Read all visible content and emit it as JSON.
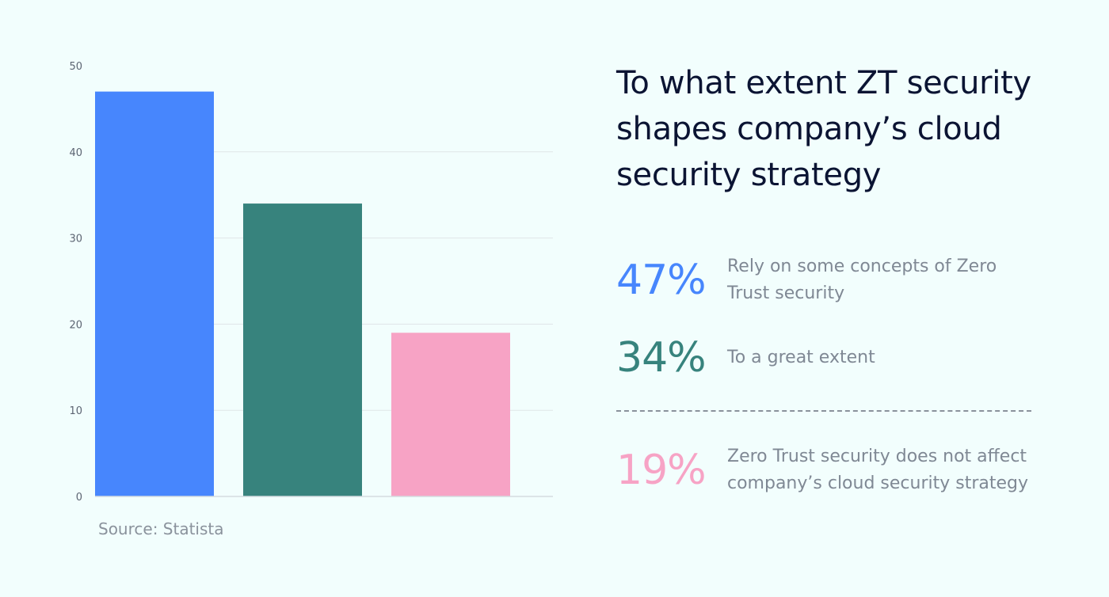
{
  "chart_data": {
    "type": "bar",
    "categories": [
      "",
      "",
      ""
    ],
    "values": [
      47,
      34,
      19
    ],
    "colors": [
      "#4786fd",
      "#37837d",
      "#f7a3c5"
    ],
    "ylim": [
      0,
      50
    ],
    "yticks": [
      0,
      10,
      20,
      30,
      40,
      50
    ],
    "grid": true,
    "title": "",
    "xlabel": "",
    "ylabel": ""
  },
  "source": "Source: Statista",
  "title": "To what extent ZT security shapes company’s cloud security strategy",
  "stats": [
    {
      "pct": "47%",
      "desc": "Rely on some concepts of Zero Trust security",
      "color": "#4786fd"
    },
    {
      "pct": "34%",
      "desc": "To a great extent",
      "color": "#37837d"
    },
    {
      "pct": "19%",
      "desc": "Zero Trust security does not affect company’s cloud security strategy",
      "color": "#f7a3c5"
    }
  ]
}
